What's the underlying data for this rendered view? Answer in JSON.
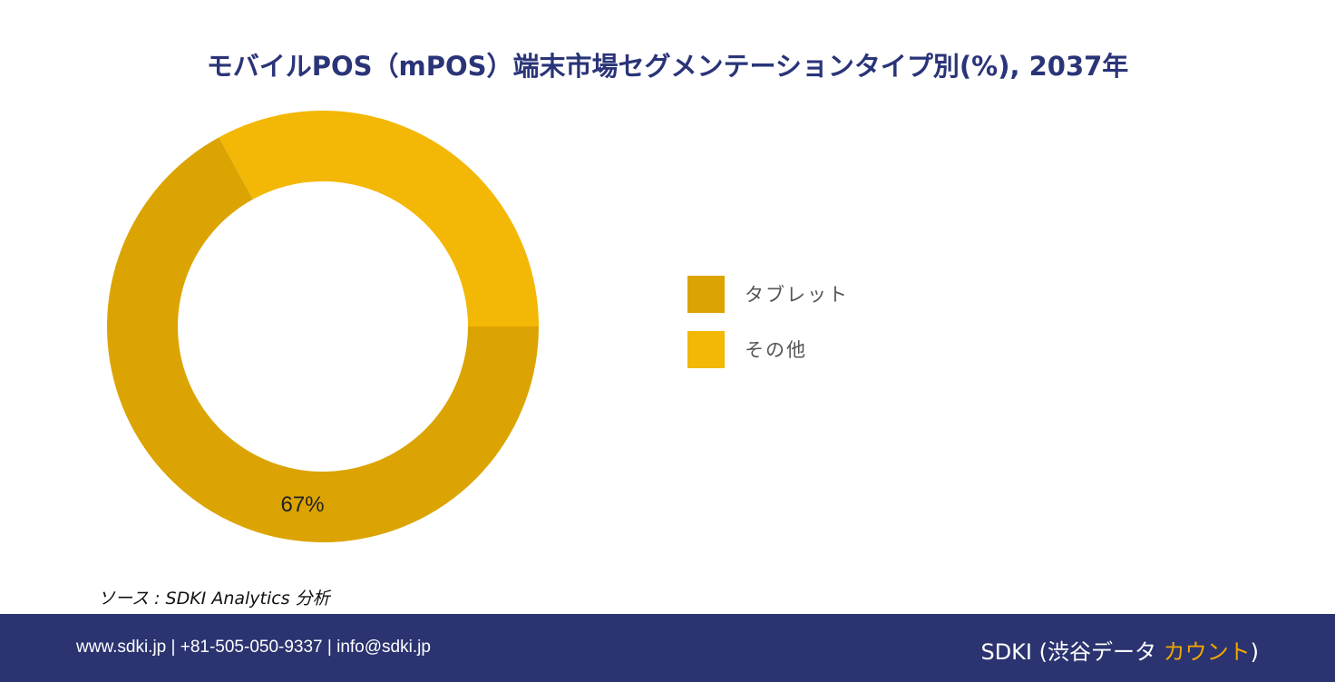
{
  "title": "モバイルPOS（mPOS）端末市場セグメンテーションタイプ別(%), 2037年",
  "chart_data": {
    "type": "pie",
    "subtype": "donut",
    "categories": [
      "タブレット",
      "その他"
    ],
    "values": [
      67,
      33
    ],
    "data_labels": [
      "67%",
      ""
    ],
    "colors": [
      "#dba402",
      "#f3b705"
    ],
    "legend_position": "right"
  },
  "source": "ソース : SDKI Analytics 分析",
  "footer": {
    "contact": "www.sdki.jp | +81-505-050-9337 | info@sdki.jp",
    "brand_prefix": "SDKI (渋谷データ ",
    "brand_accent": "カウント",
    "brand_suffix": ")"
  }
}
